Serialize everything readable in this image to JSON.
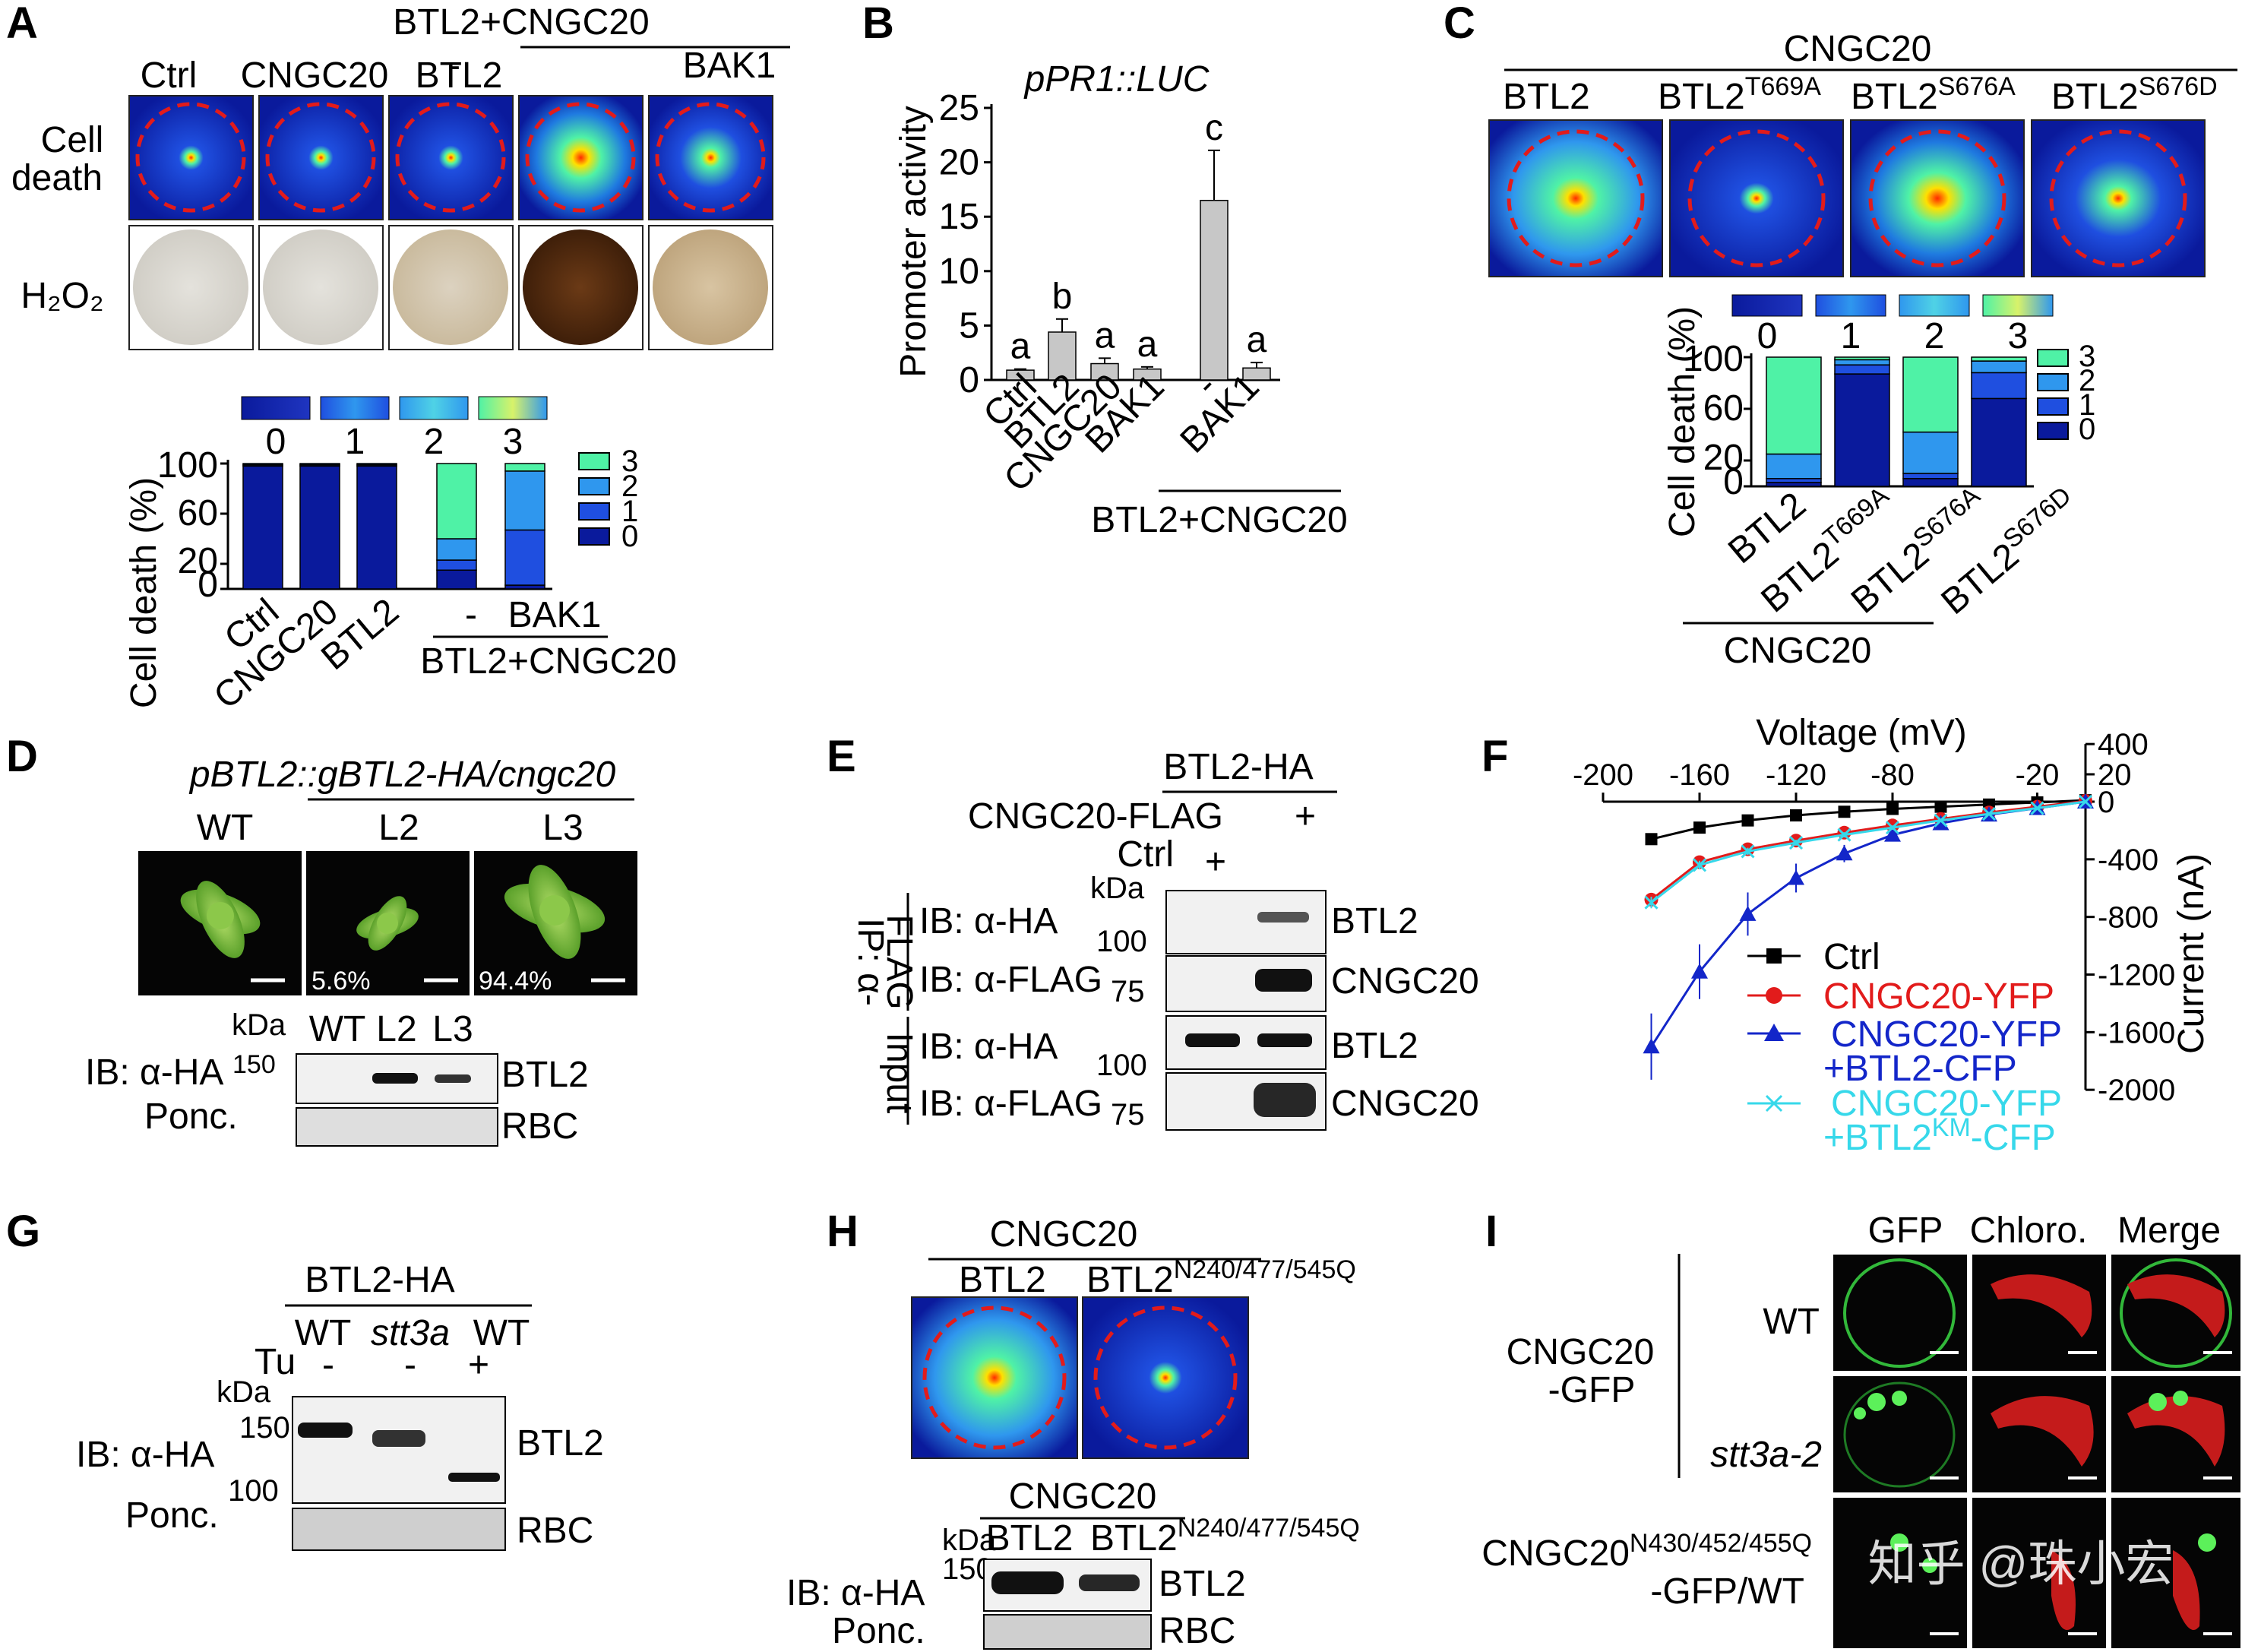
{
  "watermark": "知乎 @珠小宏",
  "panels": {
    "A": {
      "letter": "A",
      "top_group": "BTL2+CNGC20",
      "top_sub": [
        "-",
        "BAK1"
      ],
      "cols": [
        "Ctrl",
        "CNGC20",
        "BTL2"
      ],
      "row_celldeath": [
        "Cell",
        "death"
      ],
      "row_h2o2": "H₂O₂",
      "scale_labels": [
        "0",
        "1",
        "2",
        "3"
      ],
      "ylabel": "Cell death (%)",
      "yticks": [
        "0",
        "20",
        "60",
        "100"
      ],
      "legend": [
        "3",
        "2",
        "1",
        "0"
      ],
      "xlabels": [
        "Ctrl",
        "CNGC20",
        "BTL2"
      ],
      "xgroup_sub": [
        "-",
        "BAK1"
      ],
      "xgroup": "BTL2+CNGC20"
    },
    "B": {
      "letter": "B",
      "title": "pPR1::LUC",
      "ylabel": "Promoter activity",
      "yticks": [
        "0",
        "5",
        "10",
        "15",
        "20",
        "25"
      ],
      "xlabels": [
        "Ctrl",
        "BTL2",
        "CNGC20",
        "BAK1",
        "-",
        "BAK1"
      ],
      "xgroup": "BTL2+CNGC20",
      "sig_letters": [
        "a",
        "b",
        "a",
        "a",
        "c",
        "a"
      ]
    },
    "C": {
      "letter": "C",
      "top": "CNGC20",
      "cols": [
        "BTL2",
        "BTL2",
        "BTL2",
        "BTL2"
      ],
      "col_sup": [
        "",
        "T669A",
        "S676A",
        "S676D"
      ],
      "scale_labels": [
        "0",
        "1",
        "2",
        "3"
      ],
      "ylabel": "Cell death (%)",
      "yticks": [
        "0",
        "20",
        "60",
        "100"
      ],
      "legend": [
        "3",
        "2",
        "1",
        "0"
      ],
      "xlabels": [
        "BTL2",
        "BTL2",
        "BTL2",
        "BTL2"
      ],
      "xsup": [
        "",
        "T669A",
        "S676A",
        "S676D"
      ],
      "xgroup": "CNGC20"
    },
    "D": {
      "letter": "D",
      "title": "pBTL2::gBTL2-HA/cngc20",
      "cols": [
        "WT",
        "L2",
        "L3"
      ],
      "percents": [
        "5.6%",
        "94.4%"
      ],
      "kda": "kDa",
      "lanes": [
        "WT",
        "L2",
        "L3"
      ],
      "ib": "IB: α-HA",
      "marker": "150",
      "ponc": "Ponc.",
      "bands": [
        "BTL2",
        "RBC"
      ]
    },
    "E": {
      "letter": "E",
      "top": "BTL2-HA",
      "row1": "CNGC20-FLAG",
      "row2": "Ctrl",
      "plus": [
        "+",
        "+"
      ],
      "kda": "kDa",
      "ip": [
        "IP: α-",
        "FLAG"
      ],
      "input": "Input",
      "ibs": [
        "IB: α-HA",
        "IB: α-FLAG",
        "IB: α-HA",
        "IB: α-FLAG"
      ],
      "markers": [
        "100",
        "75",
        "100",
        "75"
      ],
      "bands": [
        "BTL2",
        "CNGC20",
        "BTL2",
        "CNGC20"
      ]
    },
    "F": {
      "letter": "F",
      "xlabel": "Voltage (mV)",
      "ylabel": "Current (nA)",
      "xticks": [
        "-200",
        "-160",
        "-120",
        "-80",
        "-20"
      ],
      "yticks": [
        "400",
        "20",
        "0",
        "-400",
        "-800",
        "-1200",
        "-1600",
        "-2000"
      ],
      "legend": [
        {
          "line1": "Ctrl",
          "line2": "",
          "sup": "",
          "tail": ""
        },
        {
          "line1": "CNGC20-YFP",
          "line2": "",
          "sup": "",
          "tail": ""
        },
        {
          "line1": "CNGC20-YFP",
          "line2": "+BTL2-CFP",
          "sup": "",
          "tail": ""
        },
        {
          "line1": "CNGC20-YFP",
          "line2": "+BTL2",
          "sup": "KM",
          "tail": "-CFP"
        }
      ]
    },
    "G": {
      "letter": "G",
      "top": "BTL2-HA",
      "lanes": [
        "WT",
        "stt3a",
        "WT"
      ],
      "tu": "Tu",
      "tu_signs": [
        "-",
        "-",
        "+"
      ],
      "kda": "kDa",
      "markers": [
        "150",
        "100"
      ],
      "ib": "IB: α-HA",
      "ponc": "Ponc.",
      "bands": [
        "BTL2",
        "RBC"
      ]
    },
    "H": {
      "letter": "H",
      "top": "CNGC20",
      "cols": [
        "BTL2",
        "BTL2"
      ],
      "col_sup": [
        "",
        "N240/477/545Q"
      ],
      "blot_top": "CNGC20",
      "kda": "kDa",
      "marker": "150",
      "lanes": [
        "BTL2",
        "BTL2"
      ],
      "lane_sup": [
        "",
        "N240/477/545Q"
      ],
      "ib": "IB: α-HA",
      "ponc": "Ponc.",
      "bands": [
        "BTL2",
        "RBC"
      ]
    },
    "I": {
      "letter": "I",
      "cols": [
        "GFP",
        "Chloro.",
        "Merge"
      ],
      "group1": [
        "CNGC20",
        "-GFP"
      ],
      "rows": [
        "WT",
        "stt3a-2"
      ],
      "group2_base": "CNGC20",
      "group2_sup": "N430/452/455Q",
      "group2_line2": "-GFP/WT"
    }
  },
  "chart_data": [
    {
      "type": "bar",
      "panel": "A",
      "stacked": true,
      "categories": [
        "Ctrl",
        "CNGC20",
        "BTL2",
        "BTL2+CNGC20 -",
        "BTL2+CNGC20 BAK1"
      ],
      "ylabel": "Cell death (%)",
      "ylim": [
        0,
        100
      ],
      "series": [
        {
          "name": "0",
          "values": [
            98,
            98,
            98,
            15,
            3
          ]
        },
        {
          "name": "1",
          "values": [
            1,
            1,
            1,
            8,
            44
          ]
        },
        {
          "name": "2",
          "values": [
            1,
            1,
            1,
            17,
            47
          ]
        },
        {
          "name": "3",
          "values": [
            0,
            0,
            0,
            60,
            6
          ]
        }
      ],
      "colors": {
        "0": "#0a1a9c",
        "1": "#1f4fe0",
        "2": "#2f97ee",
        "3": "#4ff2a6"
      }
    },
    {
      "type": "bar",
      "panel": "B",
      "categories": [
        "Ctrl",
        "BTL2",
        "CNGC20",
        "BAK1",
        "BTL2+CNGC20 -",
        "BTL2+CNGC20 BAK1"
      ],
      "values": [
        0.9,
        4.4,
        1.5,
        1.0,
        16.5,
        1.1
      ],
      "errors": [
        0.1,
        1.2,
        0.5,
        0.2,
        4.6,
        0.5
      ],
      "ylabel": "Promoter activity",
      "ylim": [
        0,
        25
      ],
      "bar_color": "#c7c7c7"
    },
    {
      "type": "bar",
      "panel": "C",
      "stacked": true,
      "categories": [
        "BTL2",
        "BTL2 T669A",
        "BTL2 S676A",
        "BTL2 S676D"
      ],
      "ylabel": "Cell death (%)",
      "ylim": [
        0,
        100
      ],
      "series": [
        {
          "name": "0",
          "values": [
            3,
            87,
            6,
            68
          ]
        },
        {
          "name": "1",
          "values": [
            3,
            7,
            4,
            20
          ]
        },
        {
          "name": "2",
          "values": [
            19,
            4,
            32,
            9
          ]
        },
        {
          "name": "3",
          "values": [
            75,
            2,
            58,
            3
          ]
        }
      ],
      "colors": {
        "0": "#0a1a9c",
        "1": "#1f4fe0",
        "2": "#2f97ee",
        "3": "#4ff2a6"
      }
    },
    {
      "type": "line",
      "panel": "F",
      "xlabel": "Voltage (mV)",
      "ylabel": "Current (nA)",
      "xlim": [
        -200,
        0
      ],
      "ylim": [
        -2000,
        400
      ],
      "x": [
        -180,
        -160,
        -140,
        -120,
        -100,
        -80,
        -60,
        -40,
        -20,
        0
      ],
      "series": [
        {
          "name": "Ctrl",
          "color": "#000000",
          "marker": "square",
          "values": [
            -260,
            -180,
            -130,
            -95,
            -70,
            -50,
            -35,
            -20,
            -5,
            10
          ]
        },
        {
          "name": "CNGC20-YFP",
          "color": "#e21b1b",
          "marker": "circle",
          "values": [
            -680,
            -420,
            -330,
            -270,
            -215,
            -165,
            -120,
            -75,
            -35,
            5
          ]
        },
        {
          "name": "CNGC20-YFP +BTL2-CFP",
          "color": "#1326c9",
          "marker": "triangle",
          "values": [
            -1700,
            -1180,
            -780,
            -530,
            -360,
            -230,
            -150,
            -90,
            -45,
            0
          ]
        },
        {
          "name": "CNGC20-YFP +BTL2KM-CFP",
          "color": "#36d8ea",
          "marker": "x",
          "values": [
            -700,
            -440,
            -345,
            -285,
            -230,
            -180,
            -130,
            -85,
            -45,
            0
          ]
        }
      ],
      "errors": [
        [
          20,
          15,
          15,
          10,
          10,
          10,
          8,
          6,
          5,
          4
        ],
        [
          40,
          30,
          25,
          20,
          18,
          15,
          12,
          10,
          8,
          5
        ],
        [
          230,
          190,
          150,
          100,
          60,
          45,
          35,
          25,
          15,
          10
        ],
        [
          40,
          30,
          25,
          20,
          18,
          15,
          12,
          10,
          8,
          5
        ]
      ]
    }
  ]
}
